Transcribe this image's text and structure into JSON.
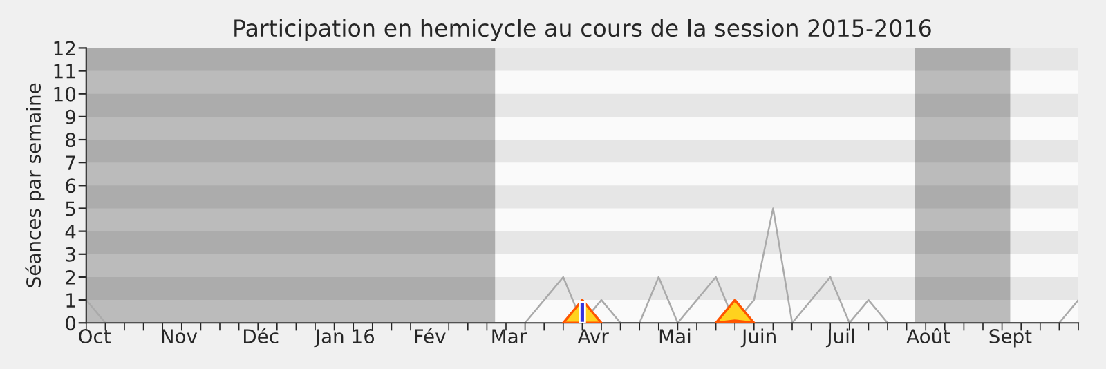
{
  "chart_data": {
    "type": "line",
    "title": "Participation en hemicycle au cours de la session 2015-2016",
    "ylabel": "Séances par semaine",
    "xlim": [
      "2015-09-28",
      "2016-09-26"
    ],
    "ylim": [
      0,
      12
    ],
    "yticks": [
      0,
      1,
      2,
      3,
      4,
      5,
      6,
      7,
      8,
      9,
      10,
      11,
      12
    ],
    "xticks": [
      {
        "value": "2015-09-28",
        "label": null
      },
      {
        "value": "2015-10-01",
        "label": "Oct"
      },
      {
        "value": "2015-10-05",
        "label": null
      },
      {
        "value": "2015-10-12",
        "label": null
      },
      {
        "value": "2015-10-19",
        "label": null
      },
      {
        "value": "2015-10-26",
        "label": null
      },
      {
        "value": "2015-11-01",
        "label": "Nov"
      },
      {
        "value": "2015-11-02",
        "label": null
      },
      {
        "value": "2015-11-09",
        "label": null
      },
      {
        "value": "2015-11-16",
        "label": null
      },
      {
        "value": "2015-11-23",
        "label": null
      },
      {
        "value": "2015-11-30",
        "label": null
      },
      {
        "value": "2015-12-01",
        "label": "Déc"
      },
      {
        "value": "2015-12-07",
        "label": null
      },
      {
        "value": "2015-12-14",
        "label": null
      },
      {
        "value": "2015-12-21",
        "label": null
      },
      {
        "value": "2015-12-28",
        "label": null
      },
      {
        "value": "2016-01-01",
        "label": "Jan 16"
      },
      {
        "value": "2016-01-04",
        "label": null
      },
      {
        "value": "2016-01-11",
        "label": null
      },
      {
        "value": "2016-01-18",
        "label": null
      },
      {
        "value": "2016-01-25",
        "label": null
      },
      {
        "value": "2016-02-01",
        "label": "Fév"
      },
      {
        "value": "2016-02-08",
        "label": null
      },
      {
        "value": "2016-02-15",
        "label": null
      },
      {
        "value": "2016-02-22",
        "label": null
      },
      {
        "value": "2016-02-29",
        "label": null
      },
      {
        "value": "2016-03-01",
        "label": "Mar"
      },
      {
        "value": "2016-03-07",
        "label": null
      },
      {
        "value": "2016-03-14",
        "label": null
      },
      {
        "value": "2016-03-21",
        "label": null
      },
      {
        "value": "2016-03-28",
        "label": null
      },
      {
        "value": "2016-04-01",
        "label": "Avr"
      },
      {
        "value": "2016-04-04",
        "label": null
      },
      {
        "value": "2016-04-11",
        "label": null
      },
      {
        "value": "2016-04-18",
        "label": null
      },
      {
        "value": "2016-04-25",
        "label": null
      },
      {
        "value": "2016-05-01",
        "label": "Mai"
      },
      {
        "value": "2016-05-02",
        "label": null
      },
      {
        "value": "2016-05-09",
        "label": null
      },
      {
        "value": "2016-05-16",
        "label": null
      },
      {
        "value": "2016-05-23",
        "label": null
      },
      {
        "value": "2016-05-30",
        "label": null
      },
      {
        "value": "2016-06-01",
        "label": "Juin"
      },
      {
        "value": "2016-06-06",
        "label": null
      },
      {
        "value": "2016-06-13",
        "label": null
      },
      {
        "value": "2016-06-20",
        "label": null
      },
      {
        "value": "2016-06-27",
        "label": null
      },
      {
        "value": "2016-07-01",
        "label": "Juil"
      },
      {
        "value": "2016-07-04",
        "label": null
      },
      {
        "value": "2016-07-11",
        "label": null
      },
      {
        "value": "2016-07-18",
        "label": null
      },
      {
        "value": "2016-07-25",
        "label": null
      },
      {
        "value": "2016-08-01",
        "label": null
      },
      {
        "value": "2016-08-02",
        "label": "Août"
      },
      {
        "value": "2016-08-08",
        "label": null
      },
      {
        "value": "2016-08-15",
        "label": null
      },
      {
        "value": "2016-08-22",
        "label": null
      },
      {
        "value": "2016-08-29",
        "label": null
      },
      {
        "value": "2016-09-01",
        "label": "Sept"
      },
      {
        "value": "2016-09-05",
        "label": null
      },
      {
        "value": "2016-09-12",
        "label": null
      },
      {
        "value": "2016-09-19",
        "label": null
      },
      {
        "value": "2016-09-26",
        "label": null
      }
    ],
    "bands": [
      {
        "axis": "x",
        "from": "2015-09-28",
        "to": "2016-02-25",
        "color": "#bbbbbb"
      },
      {
        "axis": "x",
        "from": "2016-07-28",
        "to": "2016-09-01",
        "color": "#bbbbbb"
      },
      {
        "axis": "y",
        "from": 1,
        "to": 2
      },
      {
        "axis": "y",
        "from": 3,
        "to": 4
      },
      {
        "axis": "y",
        "from": 5,
        "to": 6
      },
      {
        "axis": "y",
        "from": 7,
        "to": 8
      },
      {
        "axis": "y",
        "from": 9,
        "to": 10
      },
      {
        "axis": "y",
        "from": 11,
        "to": 12
      }
    ],
    "grid": false,
    "marker": "none",
    "line_style": "solid",
    "series": [
      {
        "color": "#aaaaaa",
        "x": [
          "2015-09-28",
          "2015-10-05",
          "2015-10-12",
          "2015-10-19",
          "2015-10-26",
          "2015-11-02",
          "2015-11-09",
          "2015-11-16",
          "2015-11-23",
          "2015-11-30",
          "2015-12-07",
          "2015-12-14",
          "2015-12-21",
          "2015-12-28",
          "2016-01-04",
          "2016-01-11",
          "2016-01-18",
          "2016-01-25",
          "2016-02-01",
          "2016-02-08",
          "2016-02-15",
          "2016-02-22",
          "2016-02-29",
          "2016-03-07",
          "2016-03-14",
          "2016-03-21",
          "2016-03-28",
          "2016-04-04",
          "2016-04-11",
          "2016-04-18",
          "2016-04-25",
          "2016-05-02",
          "2016-05-09",
          "2016-05-16",
          "2016-05-23",
          "2016-05-30",
          "2016-06-06",
          "2016-06-13",
          "2016-06-20",
          "2016-06-27",
          "2016-07-04",
          "2016-07-11",
          "2016-07-18",
          "2016-07-25",
          "2016-08-01",
          "2016-08-08",
          "2016-08-15",
          "2016-08-22",
          "2016-08-29",
          "2016-09-05",
          "2016-09-12",
          "2016-09-19",
          "2016-09-26"
        ],
        "values": [
          1,
          0,
          0,
          0,
          0,
          0,
          0,
          0,
          0,
          0,
          0,
          0,
          0,
          0,
          0,
          0,
          0,
          0,
          0,
          0,
          0,
          0,
          0,
          0,
          1,
          2,
          0,
          1,
          0,
          0,
          2,
          0,
          1,
          2,
          0,
          1,
          5,
          0,
          1,
          2,
          0,
          1,
          0,
          0,
          0,
          0,
          0,
          0,
          0,
          0,
          0,
          0,
          1
        ]
      },
      {
        "type": "area",
        "color": "#ffd21e",
        "x": [
          "2016-03-21",
          "2016-03-28",
          "2016-04-04"
        ],
        "values": [
          0,
          1,
          0
        ]
      },
      {
        "type": "area",
        "color": "#ffd21e",
        "x": [
          "2016-05-16",
          "2016-05-23",
          "2016-05-30"
        ],
        "values": [
          0,
          1,
          0
        ]
      },
      {
        "type": "area",
        "color": "#22dd22",
        "x": [
          "2016-05-16",
          "2016-05-23",
          "2016-05-30"
        ],
        "values": [
          0,
          0.1,
          0
        ]
      },
      {
        "type": "bar",
        "color": "#3333dd",
        "x": [
          "2016-03-28"
        ],
        "values": [
          0.9
        ]
      }
    ]
  }
}
